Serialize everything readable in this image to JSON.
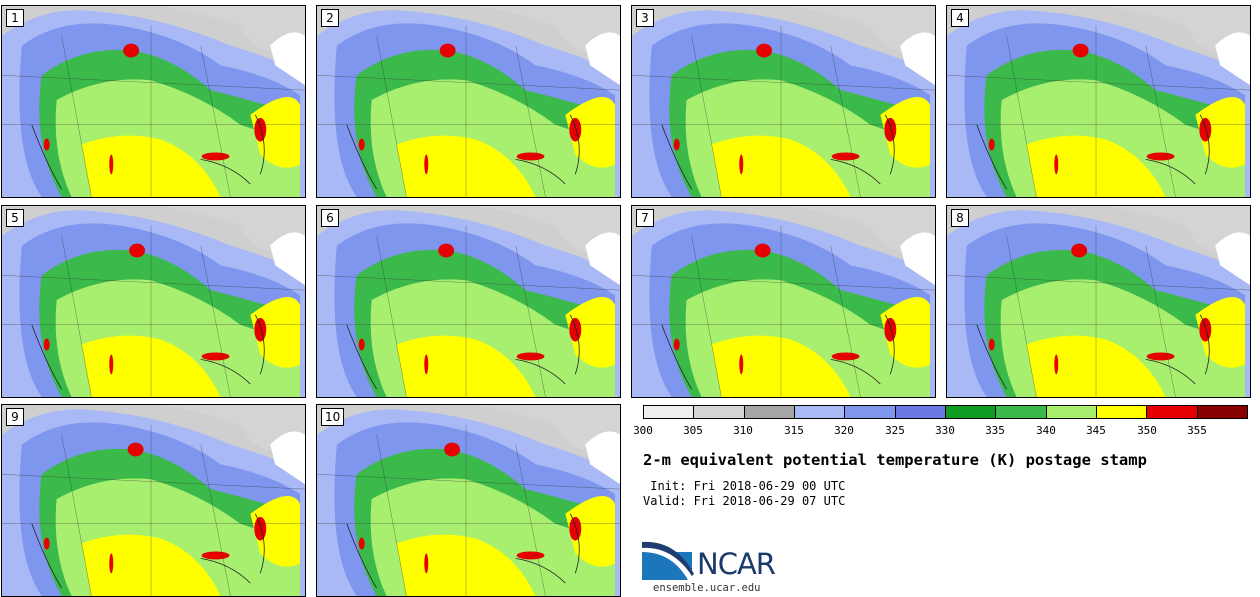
{
  "stamps": [
    {
      "label": "1"
    },
    {
      "label": "2"
    },
    {
      "label": "3"
    },
    {
      "label": "4"
    },
    {
      "label": "5"
    },
    {
      "label": "6"
    },
    {
      "label": "7"
    },
    {
      "label": "8"
    },
    {
      "label": "9"
    },
    {
      "label": "10"
    }
  ],
  "colorbar": {
    "colors": [
      "#eeeeee",
      "#d4d4d4",
      "#a6a6a6",
      "#a9b9f5",
      "#7f96ef",
      "#6b78e4",
      "#0f9c23",
      "#3bb94a",
      "#a8ee6f",
      "#ffff00",
      "#e60000",
      "#880000"
    ],
    "labels": [
      "300",
      "305",
      "310",
      "315",
      "320",
      "325",
      "330",
      "335",
      "340",
      "345",
      "350",
      "355"
    ]
  },
  "title": "2-m equivalent potential temperature (K) postage stamp",
  "init": " Init: Fri 2018-06-29 00 UTC",
  "valid": "Valid: Fri 2018-06-29 07 UTC",
  "logo": {
    "name": "NCAR",
    "url_text": "ensemble.ucar.edu"
  }
}
